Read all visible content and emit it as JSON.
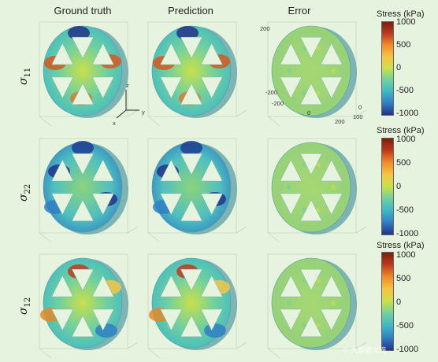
{
  "columns": [
    "Ground truth",
    "Prediction",
    "Error"
  ],
  "rows": [
    {
      "symbol": "σ",
      "subscript": "11"
    },
    {
      "symbol": "σ",
      "subscript": "22"
    },
    {
      "symbol": "σ",
      "subscript": "12"
    }
  ],
  "colorbar": {
    "title": "Stress (kPa)",
    "ticks": [
      "1000",
      "500",
      "0",
      "-500",
      "-1000"
    ],
    "colors": [
      "#7a1e0c",
      "#c0391c",
      "#f28b2a",
      "#f5c542",
      "#c9e04a",
      "#6fd0a0",
      "#3db8c8",
      "#2f7fc2",
      "#22328a"
    ]
  },
  "axes_labels": {
    "z": "z",
    "y": "y",
    "x": "x"
  },
  "error_axis_ticks": [
    "200",
    "-200",
    "-200",
    "0",
    "200",
    "0",
    "100"
  ],
  "watermark": "© 大数据文摘"
}
